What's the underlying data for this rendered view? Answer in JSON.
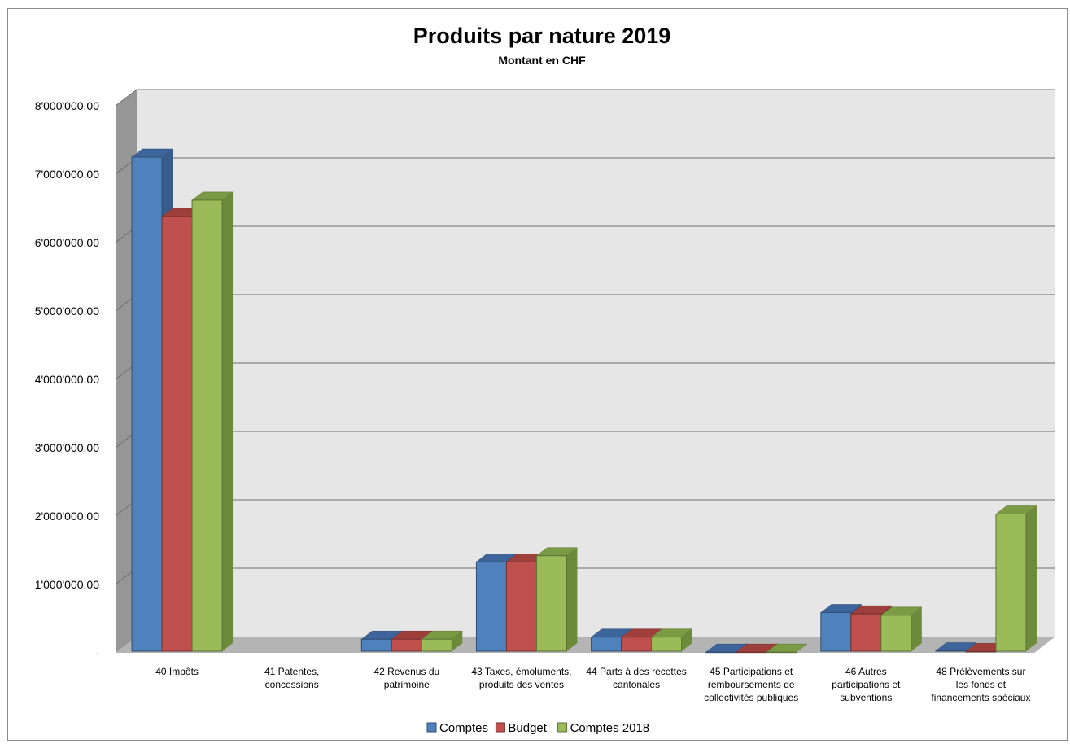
{
  "chart_data": {
    "type": "bar",
    "title": "Produits par nature 2019",
    "subtitle": "Montant en CHF",
    "categories": [
      [
        "40 Impôts"
      ],
      [
        "41 Patentes,",
        "concessions"
      ],
      [
        "42 Revenus du",
        "patrimoine"
      ],
      [
        "43 Taxes, émoluments,",
        "produits des ventes"
      ],
      [
        "44 Parts à des recettes",
        "cantonales"
      ],
      [
        "45 Participations et",
        "remboursements de",
        "collectivités publiques"
      ],
      [
        "46 Autres",
        "participations et",
        "subventions"
      ],
      [
        "48 Prélèvements sur",
        "les fonds et",
        "financements spéciaux"
      ]
    ],
    "series": [
      {
        "name": "Comptes",
        "color": "#4f81bd",
        "side": "#385d8a",
        "top": "#3d659c",
        "values": [
          7250000,
          0,
          200000,
          1330000,
          230000,
          10000,
          590000,
          30000
        ]
      },
      {
        "name": "Budget",
        "color": "#c0504d",
        "side": "#8c3836",
        "top": "#9e3f3c",
        "values": [
          6380000,
          0,
          200000,
          1330000,
          230000,
          10000,
          570000,
          20000
        ]
      },
      {
        "name": "Comptes 2018",
        "color": "#9bbb59",
        "side": "#6b8b3a",
        "top": "#7a9a44",
        "values": [
          6620000,
          0,
          200000,
          1420000,
          230000,
          10000,
          550000,
          2030000
        ]
      }
    ],
    "ylim": [
      0,
      8000000
    ],
    "yticks": [
      "-",
      "1'000'000.00",
      "2'000'000.00",
      "3'000'000.00",
      "4'000'000.00",
      "5'000'000.00",
      "6'000'000.00",
      "7'000'000.00",
      "8'000'000.00"
    ],
    "grid": true,
    "legend": "bottom"
  }
}
